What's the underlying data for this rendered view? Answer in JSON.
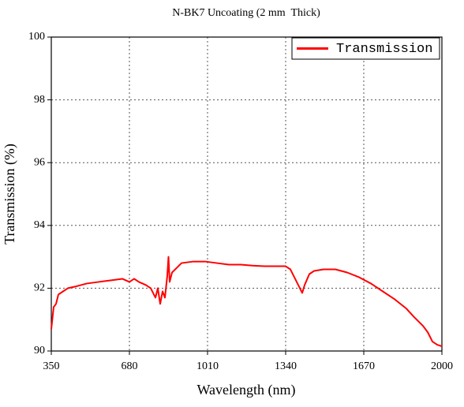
{
  "chart_data": {
    "type": "line",
    "title": "N-BK7 Uncoating (2 mm  Thick)",
    "x_label": "Wavelength (nm)",
    "y_label": "Transmission (%)",
    "x": [
      350,
      360,
      370,
      380,
      400,
      420,
      450,
      500,
      550,
      600,
      650,
      680,
      700,
      720,
      750,
      770,
      790,
      800,
      810,
      820,
      830,
      840,
      845,
      850,
      860,
      880,
      900,
      950,
      1000,
      1050,
      1100,
      1150,
      1200,
      1250,
      1300,
      1340,
      1360,
      1380,
      1400,
      1410,
      1420,
      1440,
      1460,
      1500,
      1550,
      1600,
      1650,
      1700,
      1750,
      1800,
      1850,
      1880,
      1900,
      1920,
      1940,
      1960,
      1980,
      2000
    ],
    "series": [
      {
        "name": "Transmission",
        "color": "#ff0000",
        "values": [
          90.7,
          91.4,
          91.5,
          91.8,
          91.9,
          92.0,
          92.05,
          92.15,
          92.2,
          92.25,
          92.3,
          92.2,
          92.3,
          92.2,
          92.1,
          92.0,
          91.7,
          92.0,
          91.5,
          91.9,
          91.7,
          92.4,
          93.0,
          92.2,
          92.5,
          92.65,
          92.8,
          92.85,
          92.85,
          92.8,
          92.75,
          92.75,
          92.72,
          92.7,
          92.7,
          92.7,
          92.6,
          92.3,
          92.0,
          91.85,
          92.1,
          92.45,
          92.55,
          92.6,
          92.6,
          92.5,
          92.35,
          92.15,
          91.9,
          91.65,
          91.35,
          91.1,
          90.95,
          90.8,
          90.6,
          90.3,
          90.2,
          90.15
        ]
      }
    ],
    "xlim": [
      350,
      2000
    ],
    "xticks": [
      350,
      680,
      1010,
      1340,
      1670,
      2000
    ],
    "ylim": [
      90,
      100
    ],
    "yticks": [
      90,
      92,
      94,
      96,
      98,
      100
    ],
    "grid": true,
    "legend": "top-right"
  }
}
